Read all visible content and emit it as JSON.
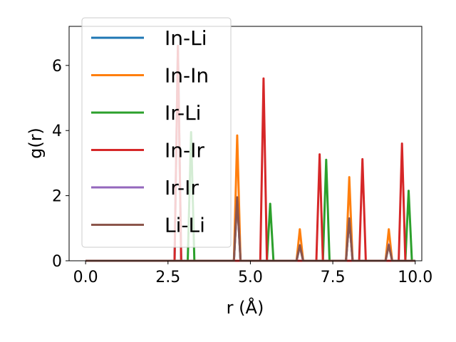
{
  "chart_data": {
    "type": "line",
    "xlabel": "r (Å)",
    "ylabel": "g(r)",
    "xlim": [
      -0.5,
      10.2
    ],
    "ylim": [
      0,
      7.2
    ],
    "xticks": [
      0.0,
      2.5,
      5.0,
      7.5,
      10.0
    ],
    "xtick_labels": [
      "0.0",
      "2.5",
      "5.0",
      "7.5",
      "10.0"
    ],
    "yticks": [
      0,
      2,
      4,
      6
    ],
    "ytick_labels": [
      "0",
      "2",
      "4",
      "6"
    ],
    "grid": false,
    "legend_position": "upper-left",
    "series": [
      {
        "name": "In-Li",
        "color": "#1f77b4",
        "peaks": [
          [
            2.8,
            6.6
          ],
          [
            4.6,
            1.9
          ],
          [
            6.5,
            0.45
          ],
          [
            8.0,
            1.3
          ],
          [
            9.2,
            0.5
          ]
        ]
      },
      {
        "name": "In-In",
        "color": "#ff7f0e",
        "peaks": [
          [
            4.6,
            3.85
          ],
          [
            6.5,
            0.97
          ],
          [
            8.0,
            2.57
          ],
          [
            9.2,
            0.97
          ]
        ]
      },
      {
        "name": "Ir-Li",
        "color": "#2ca02c",
        "peaks": [
          [
            3.2,
            3.95
          ],
          [
            5.6,
            1.75
          ],
          [
            7.3,
            3.1
          ],
          [
            9.8,
            2.15
          ]
        ]
      },
      {
        "name": "In-Ir",
        "color": "#d62728",
        "peaks": [
          [
            2.8,
            6.6
          ],
          [
            5.4,
            5.6
          ],
          [
            7.1,
            3.27
          ],
          [
            8.4,
            3.12
          ],
          [
            9.6,
            3.6
          ]
        ]
      },
      {
        "name": "Ir-Ir",
        "color": "#9467bd",
        "peaks": [
          [
            4.6,
            1.9
          ],
          [
            6.5,
            0.45
          ],
          [
            8.0,
            1.3
          ],
          [
            9.2,
            0.5
          ]
        ]
      },
      {
        "name": "Li-Li",
        "color": "#8c564b",
        "peaks": [
          [
            4.6,
            1.95
          ],
          [
            6.5,
            0.48
          ],
          [
            8.0,
            1.3
          ],
          [
            9.2,
            0.48
          ]
        ]
      }
    ]
  }
}
